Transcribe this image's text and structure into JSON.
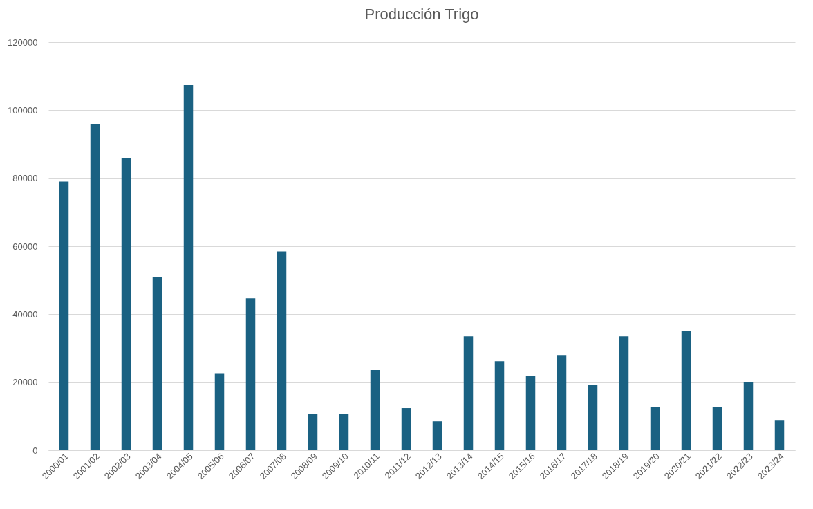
{
  "chart_data": {
    "type": "bar",
    "title": "Producción Trigo",
    "categories": [
      "2000/01",
      "2001/02",
      "2002/03",
      "2003/04",
      "2004/05",
      "2005/06",
      "2006/07",
      "2007/08",
      "2008/09",
      "2009/10",
      "2010/11",
      "2011/12",
      "2012/13",
      "2013/14",
      "2014/15",
      "2015/16",
      "2016/17",
      "2017/18",
      "2018/19",
      "2019/20",
      "2020/21",
      "2021/22",
      "2022/23",
      "2023/24"
    ],
    "values": [
      79000,
      95800,
      85900,
      51000,
      107400,
      22500,
      44700,
      58500,
      10600,
      10600,
      23600,
      12400,
      8500,
      33500,
      26200,
      21900,
      27800,
      19300,
      33500,
      12800,
      35100,
      12800,
      20100,
      8700
    ],
    "color": "#1a6182",
    "ylim": [
      0,
      120000
    ],
    "yticks": [
      0,
      20000,
      40000,
      60000,
      80000,
      100000,
      120000
    ],
    "grid": "y"
  }
}
